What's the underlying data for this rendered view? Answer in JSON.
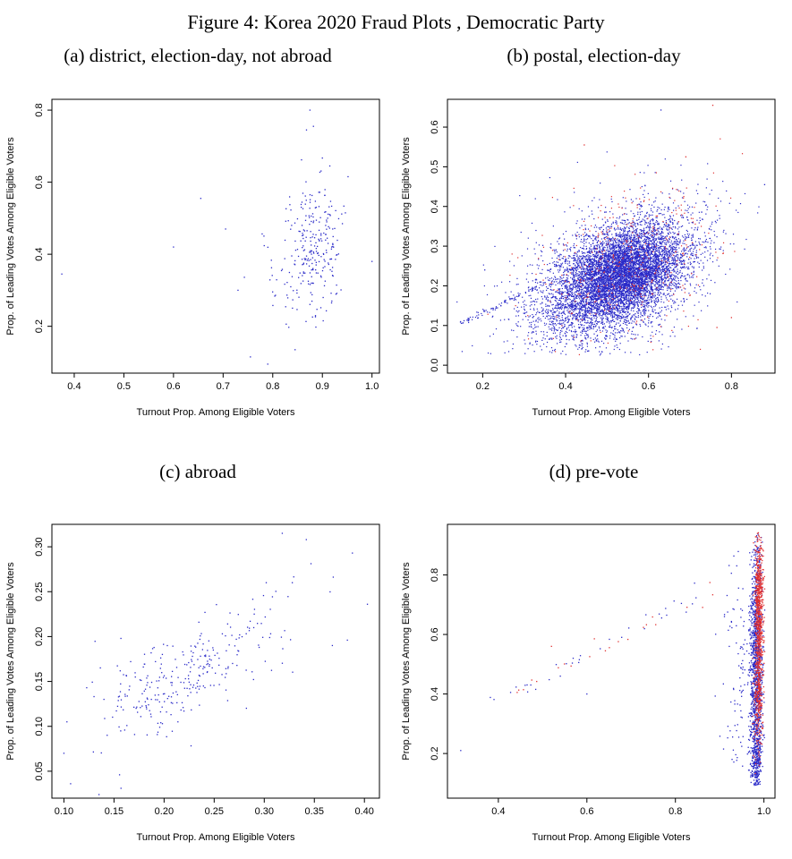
{
  "figure": {
    "title": "Figure 4: Korea 2020 Fraud Plots , Democratic Party"
  },
  "colors": {
    "blue": "#2a2ac8",
    "red": "#e03030",
    "axis": "#000000"
  },
  "chart_data": [
    {
      "type": "scatter",
      "title": "(a) district, election-day, not abroad",
      "xlabel": "Turnout Prop. Among Eligible Voters",
      "ylabel": "Prop. of Leading Votes Among Eligible Voters",
      "xlim": [
        0.355,
        1.015
      ],
      "ylim": [
        0.07,
        0.83
      ],
      "xticks": [
        0.4,
        0.5,
        0.6,
        0.7,
        0.8,
        0.9,
        1.0
      ],
      "xtick_labels": [
        "0.4",
        "0.5",
        "0.6",
        "0.7",
        "0.8",
        "0.9",
        "1.0"
      ],
      "yticks": [
        0.2,
        0.4,
        0.6,
        0.8
      ],
      "ytick_labels": [
        "0.2",
        "0.4",
        "0.6",
        "0.8"
      ],
      "seed": 101,
      "series": [
        {
          "name": "district-main-cluster",
          "kind": "cluster",
          "color": "blue",
          "n": 240,
          "cx": 0.885,
          "cy": 0.43,
          "sx": 0.028,
          "sy": 0.095,
          "rho": 0.05,
          "clip": [
            0.7,
            1.005,
            0.09,
            0.82
          ]
        },
        {
          "name": "district-left-tail",
          "kind": "cluster",
          "color": "blue",
          "n": 30,
          "cx": 0.81,
          "cy": 0.34,
          "sx": 0.035,
          "sy": 0.07,
          "rho": 0,
          "clip": [
            0.7,
            1.0,
            0.1,
            0.7
          ]
        },
        {
          "name": "district-outliers",
          "kind": "points",
          "color": "blue",
          "pts": [
            [
              0.375,
              0.345
            ],
            [
              0.6,
              0.42
            ],
            [
              0.655,
              0.555
            ],
            [
              0.705,
              0.47
            ],
            [
              1.0,
              0.38
            ],
            [
              0.755,
              0.115
            ],
            [
              0.79,
              0.095
            ],
            [
              0.845,
              0.135
            ],
            [
              0.875,
              0.8
            ],
            [
              0.882,
              0.755
            ],
            [
              0.868,
              0.745
            ],
            [
              0.858,
              0.662
            ],
            [
              0.9,
              0.667
            ],
            [
              0.915,
              0.645
            ],
            [
              0.73,
              0.3
            ]
          ]
        }
      ]
    },
    {
      "type": "scatter",
      "title": "(b) postal, election-day",
      "xlabel": "Turnout Prop. Among Eligible Voters",
      "ylabel": "Prop. of Leading Votes Among Eligible Voters",
      "xlim": [
        0.115,
        0.905
      ],
      "ylim": [
        -0.02,
        0.67
      ],
      "xticks": [
        0.2,
        0.4,
        0.6,
        0.8
      ],
      "xtick_labels": [
        "0.2",
        "0.4",
        "0.6",
        "0.8"
      ],
      "yticks": [
        0.0,
        0.1,
        0.2,
        0.3,
        0.4,
        0.5,
        0.6
      ],
      "ytick_labels": [
        "0.0",
        "0.1",
        "0.2",
        "0.3",
        "0.4",
        "0.5",
        "0.6"
      ],
      "seed": 202,
      "series": [
        {
          "name": "postal-main-cloud",
          "kind": "cluster",
          "color": "blue",
          "n": 5200,
          "cx": 0.52,
          "cy": 0.215,
          "sx": 0.092,
          "sy": 0.075,
          "rho": 0.5,
          "size": 1.2,
          "clip": [
            0.13,
            0.9,
            0.025,
            0.66
          ]
        },
        {
          "name": "postal-dense-core",
          "kind": "cluster",
          "color": "blue",
          "n": 2600,
          "cx": 0.545,
          "cy": 0.235,
          "sx": 0.062,
          "sy": 0.052,
          "rho": 0.3,
          "size": 1.2,
          "clip": [
            0.13,
            0.9,
            0.025,
            0.66
          ]
        },
        {
          "name": "postal-halo",
          "kind": "cluster",
          "color": "blue",
          "n": 700,
          "cx": 0.5,
          "cy": 0.22,
          "sx": 0.135,
          "sy": 0.105,
          "rho": 0.4,
          "size": 1.2,
          "clip": [
            0.13,
            0.9,
            0.025,
            0.66
          ]
        },
        {
          "name": "postal-red-scatter",
          "kind": "cluster",
          "color": "red",
          "n": 330,
          "cx": 0.555,
          "cy": 0.255,
          "sx": 0.105,
          "sy": 0.095,
          "rho": 0.35,
          "size": 1.2,
          "clip": [
            0.13,
            0.9,
            0.025,
            0.66
          ]
        },
        {
          "name": "postal-red-halo",
          "kind": "cluster",
          "color": "red",
          "n": 60,
          "cx": 0.52,
          "cy": 0.24,
          "sx": 0.15,
          "sy": 0.13,
          "rho": 0.3,
          "size": 1.2,
          "clip": [
            0.13,
            0.9,
            0.025,
            0.66
          ]
        },
        {
          "name": "postal-diagonal-streak",
          "kind": "segment",
          "color": "blue",
          "n": 90,
          "x1": 0.145,
          "y1": 0.103,
          "x2": 0.345,
          "y2": 0.205,
          "jx": 0.004,
          "jy": 0.003,
          "size": 1.2
        },
        {
          "name": "postal-blue-outliers",
          "kind": "points",
          "color": "blue",
          "pts": [
            [
              0.63,
              0.643
            ],
            [
              0.88,
              0.455
            ],
            [
              0.155,
              0.112
            ],
            [
              0.165,
              0.118
            ],
            [
              0.205,
              0.24
            ]
          ]
        },
        {
          "name": "postal-red-outliers",
          "kind": "points",
          "color": "red",
          "pts": [
            [
              0.755,
              0.655
            ],
            [
              0.69,
              0.525
            ],
            [
              0.8,
              0.12
            ],
            [
              0.765,
              0.095
            ],
            [
              0.445,
              0.555
            ]
          ]
        }
      ]
    },
    {
      "type": "scatter",
      "title": "(c) abroad",
      "xlabel": "Turnout Prop. Among Eligible Voters",
      "ylabel": "Prop. of Leading Votes Among Eligible Voters",
      "xlim": [
        0.088,
        0.415
      ],
      "ylim": [
        0.02,
        0.325
      ],
      "xticks": [
        0.1,
        0.15,
        0.2,
        0.25,
        0.3,
        0.35,
        0.4
      ],
      "xtick_labels": [
        "0.10",
        "0.15",
        "0.20",
        "0.25",
        "0.30",
        "0.35",
        "0.40"
      ],
      "yticks": [
        0.05,
        0.1,
        0.15,
        0.2,
        0.25,
        0.3
      ],
      "ytick_labels": [
        "0.05",
        "0.10",
        "0.15",
        "0.20",
        "0.25",
        "0.30"
      ],
      "seed": 303,
      "series": [
        {
          "name": "abroad-cluster",
          "kind": "cluster",
          "color": "blue",
          "n": 290,
          "cx": 0.225,
          "cy": 0.158,
          "sx": 0.047,
          "sy": 0.04,
          "rho": 0.72,
          "clip": [
            0.095,
            0.41,
            0.025,
            0.32
          ]
        },
        {
          "name": "abroad-outliers",
          "kind": "points",
          "color": "blue",
          "pts": [
            [
              0.103,
              0.105
            ],
            [
              0.1,
              0.07
            ],
            [
              0.135,
              0.024
            ],
            [
              0.157,
              0.031
            ],
            [
              0.318,
              0.315
            ],
            [
              0.342,
              0.308
            ],
            [
              0.388,
              0.293
            ],
            [
              0.403,
              0.236
            ],
            [
              0.368,
              0.19
            ],
            [
              0.383,
              0.196
            ],
            [
              0.302,
              0.26
            ],
            [
              0.328,
              0.26
            ],
            [
              0.29,
              0.225
            ]
          ]
        }
      ]
    },
    {
      "type": "scatter",
      "title": "(d) pre-vote",
      "xlabel": "Turnout Prop. Among Eligible Voters",
      "ylabel": "Prop. of Leading Votes Among Eligible Voters",
      "xlim": [
        0.285,
        1.025
      ],
      "ylim": [
        0.05,
        0.97
      ],
      "xticks": [
        0.4,
        0.6,
        0.8,
        1.0
      ],
      "xtick_labels": [
        "0.4",
        "0.6",
        "0.8",
        "1.0"
      ],
      "yticks": [
        0.2,
        0.4,
        0.6,
        0.8
      ],
      "ytick_labels": [
        "0.2",
        "0.4",
        "0.6",
        "0.8"
      ],
      "seed": 404,
      "series": [
        {
          "name": "prevote-band-blue",
          "kind": "cluster",
          "color": "blue",
          "n": 1300,
          "cx": 0.983,
          "cy": 0.48,
          "sx": 0.0065,
          "sy": 0.21,
          "rho": 0,
          "clip": [
            0.965,
            1.002,
            0.09,
            0.95
          ]
        },
        {
          "name": "prevote-band-blue-bottom",
          "kind": "cluster",
          "color": "blue",
          "n": 150,
          "cx": 0.982,
          "cy": 0.17,
          "sx": 0.006,
          "sy": 0.05,
          "rho": 0,
          "clip": [
            0.965,
            1.002,
            0.09,
            0.4
          ]
        },
        {
          "name": "prevote-band-red-upper",
          "kind": "cluster",
          "color": "red",
          "n": 650,
          "cx": 0.989,
          "cy": 0.7,
          "sx": 0.0045,
          "sy": 0.12,
          "rho": 0,
          "clip": [
            0.97,
            1.002,
            0.15,
            0.95
          ]
        },
        {
          "name": "prevote-band-red-lower",
          "kind": "cluster",
          "color": "red",
          "n": 280,
          "cx": 0.988,
          "cy": 0.4,
          "sx": 0.005,
          "sy": 0.1,
          "rho": 0,
          "clip": [
            0.97,
            1.002,
            0.12,
            0.6
          ]
        },
        {
          "name": "prevote-band-fringe-blue",
          "kind": "cluster",
          "color": "blue",
          "n": 130,
          "cx": 0.952,
          "cy": 0.47,
          "sx": 0.022,
          "sy": 0.21,
          "rho": 0,
          "clip": [
            0.88,
            1.0,
            0.1,
            0.93
          ]
        },
        {
          "name": "prevote-diagonal-blue",
          "kind": "segment",
          "color": "blue",
          "n": 34,
          "x1": 0.385,
          "y1": 0.365,
          "x2": 0.92,
          "y2": 0.79,
          "jx": 0.012,
          "jy": 0.014
        },
        {
          "name": "prevote-diagonal-red",
          "kind": "segment",
          "color": "red",
          "n": 22,
          "x1": 0.42,
          "y1": 0.39,
          "x2": 0.9,
          "y2": 0.77,
          "jx": 0.014,
          "jy": 0.014
        },
        {
          "name": "prevote-blue-outliers",
          "kind": "points",
          "color": "blue",
          "pts": [
            [
              0.315,
              0.21
            ],
            [
              0.54,
              0.46
            ],
            [
              0.6,
              0.4
            ]
          ]
        },
        {
          "name": "prevote-red-outliers",
          "kind": "points",
          "color": "red",
          "pts": [
            [
              0.52,
              0.56
            ]
          ]
        }
      ]
    }
  ]
}
